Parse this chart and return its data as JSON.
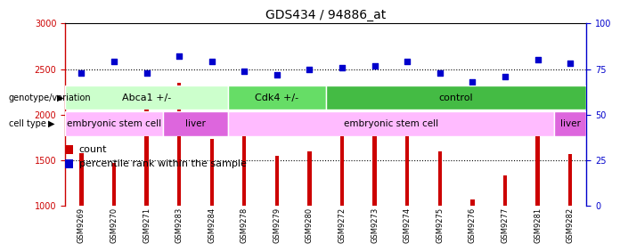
{
  "title": "GDS434 / 94886_at",
  "samples": [
    "GSM9269",
    "GSM9270",
    "GSM9271",
    "GSM9283",
    "GSM9284",
    "GSM9278",
    "GSM9279",
    "GSM9280",
    "GSM9272",
    "GSM9273",
    "GSM9274",
    "GSM9275",
    "GSM9276",
    "GSM9277",
    "GSM9281",
    "GSM9282"
  ],
  "counts": [
    1580,
    1470,
    2140,
    2350,
    1740,
    1760,
    1550,
    1600,
    1790,
    1840,
    1940,
    1600,
    1070,
    1340,
    1790,
    1570
  ],
  "percentiles": [
    73,
    79,
    73,
    82,
    79,
    74,
    72,
    75,
    76,
    77,
    79,
    73,
    68,
    71,
    80,
    78
  ],
  "ylim_left": [
    1000,
    3000
  ],
  "ylim_right": [
    0,
    100
  ],
  "bar_color": "#cc0000",
  "dot_color": "#0000cc",
  "bar_bottom": 1000,
  "yticks_left": [
    1000,
    1500,
    2000,
    2500,
    3000
  ],
  "yticks_right": [
    0,
    25,
    50,
    75,
    100
  ],
  "hlines": [
    1500,
    2000,
    2500
  ],
  "genotype_groups": [
    {
      "label": "Abca1 +/-",
      "start": 0,
      "end": 5,
      "color": "#ccffcc"
    },
    {
      "label": "Cdk4 +/-",
      "start": 5,
      "end": 8,
      "color": "#66dd66"
    },
    {
      "label": "control",
      "start": 8,
      "end": 16,
      "color": "#44bb44"
    }
  ],
  "celltype_groups": [
    {
      "label": "embryonic stem cell",
      "start": 0,
      "end": 3,
      "color": "#ffbbff"
    },
    {
      "label": "liver",
      "start": 3,
      "end": 5,
      "color": "#dd66dd"
    },
    {
      "label": "embryonic stem cell",
      "start": 5,
      "end": 15,
      "color": "#ffbbff"
    },
    {
      "label": "liver",
      "start": 15,
      "end": 16,
      "color": "#dd66dd"
    }
  ],
  "legend_items": [
    {
      "label": "count",
      "color": "#cc0000"
    },
    {
      "label": "percentile rank within the sample",
      "color": "#0000cc"
    }
  ],
  "left_axis_color": "#cc0000",
  "right_axis_color": "#0000cc",
  "bg_color": "#e8e8e8"
}
